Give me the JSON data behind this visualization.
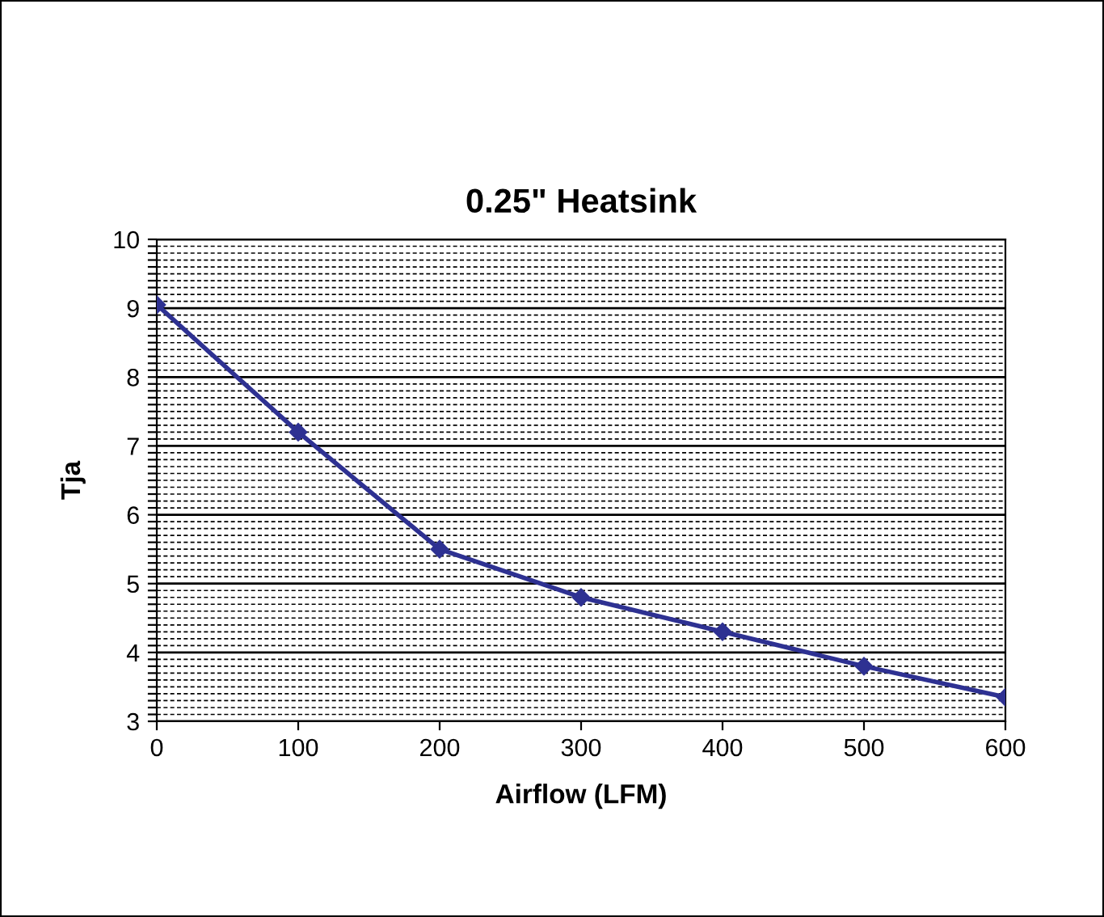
{
  "chart_data": {
    "type": "line",
    "title": "0.25\" Heatsink",
    "xlabel": "Airflow (LFM)",
    "ylabel": "Tja",
    "x": [
      0,
      100,
      200,
      300,
      400,
      500,
      600
    ],
    "series": [
      {
        "color": "#2e3192",
        "values": [
          9.05,
          7.2,
          5.5,
          4.8,
          4.3,
          3.8,
          3.35
        ]
      }
    ],
    "xlim": [
      0,
      600
    ],
    "xticks": [
      0,
      100,
      200,
      300,
      400,
      500,
      600
    ],
    "ylim": [
      3,
      10
    ],
    "yticks": [
      3,
      {
        "value": 3.1,
        "label": null
      },
      {
        "value": 3.2,
        "label": null
      },
      {
        "value": 3.3,
        "label": null
      },
      {
        "value": 3.4,
        "label": null
      },
      {
        "value": 3.5,
        "label": null
      },
      {
        "value": 3.6,
        "label": null
      },
      {
        "value": 3.7,
        "label": null
      },
      {
        "value": 3.8,
        "label": null
      },
      {
        "value": 3.9,
        "label": null
      },
      4,
      {
        "value": 4.1,
        "label": null
      },
      {
        "value": 4.2,
        "label": null
      },
      {
        "value": 4.3,
        "label": null
      },
      {
        "value": 4.4,
        "label": null
      },
      {
        "value": 4.5,
        "label": null
      },
      {
        "value": 4.6,
        "label": null
      },
      {
        "value": 4.7,
        "label": null
      },
      {
        "value": 4.8,
        "label": null
      },
      {
        "value": 4.9,
        "label": null
      },
      5,
      {
        "value": 5.1,
        "label": null
      },
      {
        "value": 5.2,
        "label": null
      },
      {
        "value": 5.3,
        "label": null
      },
      {
        "value": 5.4,
        "label": null
      },
      {
        "value": 5.5,
        "label": null
      },
      {
        "value": 5.6,
        "label": null
      },
      {
        "value": 5.7,
        "label": null
      },
      {
        "value": 5.8,
        "label": null
      },
      {
        "value": 5.9,
        "label": null
      },
      6,
      {
        "value": 6.1,
        "label": null
      },
      {
        "value": 6.2,
        "label": null
      },
      {
        "value": 6.3,
        "label": null
      },
      {
        "value": 6.4,
        "label": null
      },
      {
        "value": 6.5,
        "label": null
      },
      {
        "value": 6.6,
        "label": null
      },
      {
        "value": 6.7,
        "label": null
      },
      {
        "value": 6.8,
        "label": null
      },
      {
        "value": 6.9,
        "label": null
      },
      7,
      {
        "value": 7.1,
        "label": null
      },
      {
        "value": 7.2,
        "label": null
      },
      {
        "value": 7.3,
        "label": null
      },
      {
        "value": 7.4,
        "label": null
      },
      {
        "value": 7.5,
        "label": null
      },
      {
        "value": 7.6,
        "label": null
      },
      {
        "value": 7.7,
        "label": null
      },
      {
        "value": 7.8,
        "label": null
      },
      {
        "value": 7.9,
        "label": null
      },
      8,
      {
        "value": 8.1,
        "label": null
      },
      {
        "value": 8.2,
        "label": null
      },
      {
        "value": 8.3,
        "label": null
      },
      {
        "value": 8.4,
        "label": null
      },
      {
        "value": 8.5,
        "label": null
      },
      {
        "value": 8.6,
        "label": null
      },
      {
        "value": 8.7,
        "label": null
      },
      {
        "value": 8.8,
        "label": null
      },
      {
        "value": 8.9,
        "label": null
      },
      9,
      {
        "value": 9.1,
        "label": null
      },
      {
        "value": 9.2,
        "label": null
      },
      {
        "value": 9.3,
        "label": null
      },
      {
        "value": 9.4,
        "label": null
      },
      {
        "value": 9.5,
        "label": null
      },
      {
        "value": 9.6,
        "label": null
      },
      {
        "value": 9.7,
        "label": null
      },
      {
        "value": 9.8,
        "label": null
      },
      {
        "value": 9.9,
        "label": null
      },
      10
    ],
    "grid": "y",
    "marker": "diamond",
    "line_style": "solid"
  }
}
